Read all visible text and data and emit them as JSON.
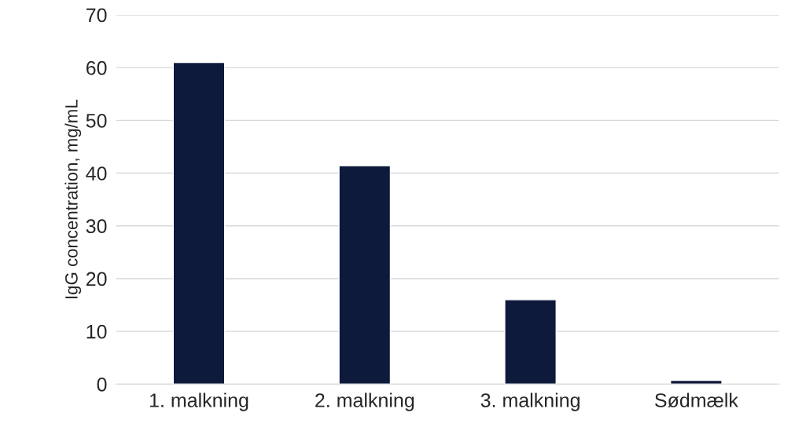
{
  "chart_data": {
    "type": "bar",
    "ylabel": "IgG concentration, mg/mL",
    "categories": [
      "1. malkning",
      "2. malkning",
      "3. malkning",
      "Sødmælk"
    ],
    "values": [
      61,
      41.4,
      16,
      0.7
    ],
    "color": "#0e1a3c",
    "ylim": [
      0,
      70
    ],
    "yticks": [
      0,
      10,
      20,
      30,
      40,
      50,
      60,
      70
    ],
    "grid": "y"
  }
}
